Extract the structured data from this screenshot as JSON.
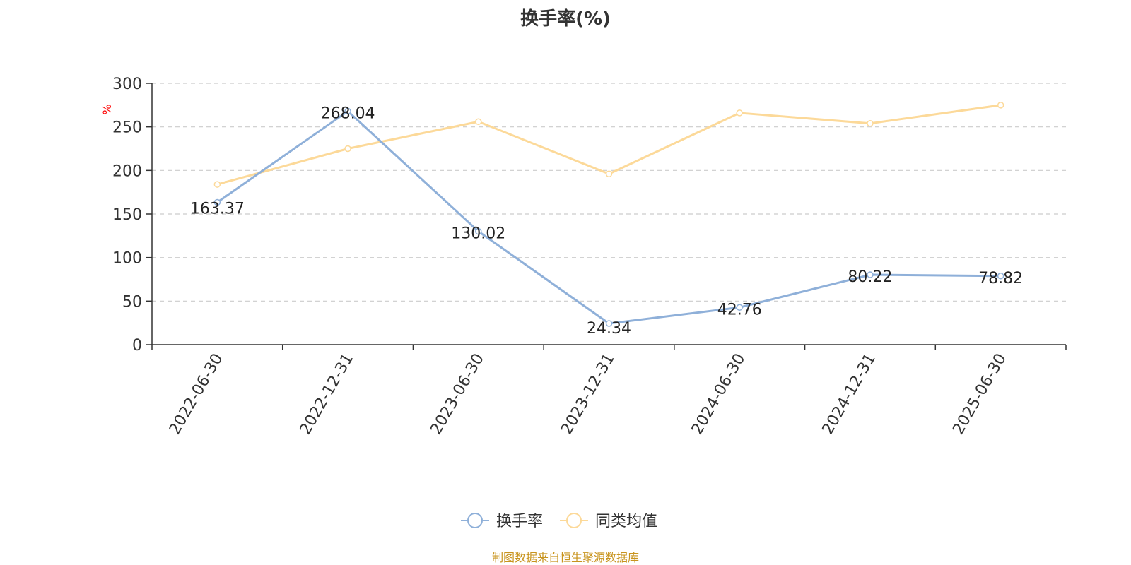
{
  "chart_data": {
    "type": "line",
    "title": "换手率(%)",
    "ylabel": "%",
    "xlabel": "",
    "ylim": [
      0,
      300
    ],
    "yticks": [
      0,
      50,
      100,
      150,
      200,
      250,
      300
    ],
    "grid": true,
    "legend_position": "bottom",
    "categories": [
      "2022-06-30",
      "2022-12-31",
      "2023-06-30",
      "2023-12-31",
      "2024-06-30",
      "2024-12-31",
      "2025-06-30"
    ],
    "series": [
      {
        "name": "换手率",
        "color": "#8fb0d9",
        "values": [
          163.37,
          268.04,
          130.02,
          24.34,
          42.76,
          80.22,
          78.82
        ],
        "show_labels": true
      },
      {
        "name": "同类均值",
        "color": "#fcd999",
        "values": [
          184,
          225,
          256,
          196,
          266,
          254,
          275
        ],
        "show_labels": false
      }
    ]
  },
  "source_text": "制图数据来自恒生聚源数据库"
}
